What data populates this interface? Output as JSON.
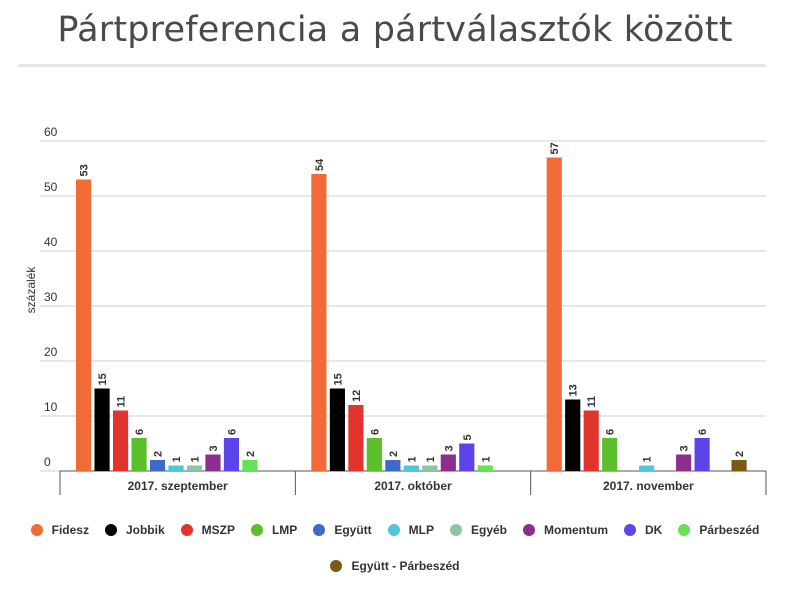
{
  "title": "Pártpreferencia a pártválasztók között",
  "chart_data": {
    "type": "bar",
    "title": "Pártpreferencia a pártválasztók között",
    "xlabel": "",
    "ylabel": "százalék",
    "ylim": [
      0,
      60
    ],
    "yticks": [
      0,
      10,
      20,
      30,
      40,
      50,
      60
    ],
    "grid": true,
    "legend_position": "bottom",
    "categories": [
      "2017. szeptember",
      "2017. október",
      "2017. november"
    ],
    "series": [
      {
        "name": "Fidesz",
        "color": "#f26a36",
        "values": [
          53,
          54,
          57
        ]
      },
      {
        "name": "Jobbik",
        "color": "#000000",
        "values": [
          15,
          15,
          13
        ]
      },
      {
        "name": "MSZP",
        "color": "#e2342f",
        "values": [
          11,
          12,
          11
        ]
      },
      {
        "name": "LMP",
        "color": "#5bbf2b",
        "values": [
          6,
          6,
          6
        ]
      },
      {
        "name": "Együtt",
        "color": "#3f69c8",
        "values": [
          2,
          2,
          null
        ]
      },
      {
        "name": "MLP",
        "color": "#4fc7d6",
        "values": [
          1,
          1,
          1
        ]
      },
      {
        "name": "Egyéb",
        "color": "#8fc3a8",
        "values": [
          1,
          1,
          null
        ]
      },
      {
        "name": "Momentum",
        "color": "#8c2e8c",
        "values": [
          3,
          3,
          3
        ]
      },
      {
        "name": "DK",
        "color": "#5b45ea",
        "values": [
          6,
          5,
          6
        ]
      },
      {
        "name": "Párbeszéd",
        "color": "#66e055",
        "values": [
          2,
          1,
          null
        ]
      },
      {
        "name": "Együtt - Párbeszéd",
        "color": "#7a5a14",
        "values": [
          null,
          null,
          2
        ]
      }
    ]
  }
}
